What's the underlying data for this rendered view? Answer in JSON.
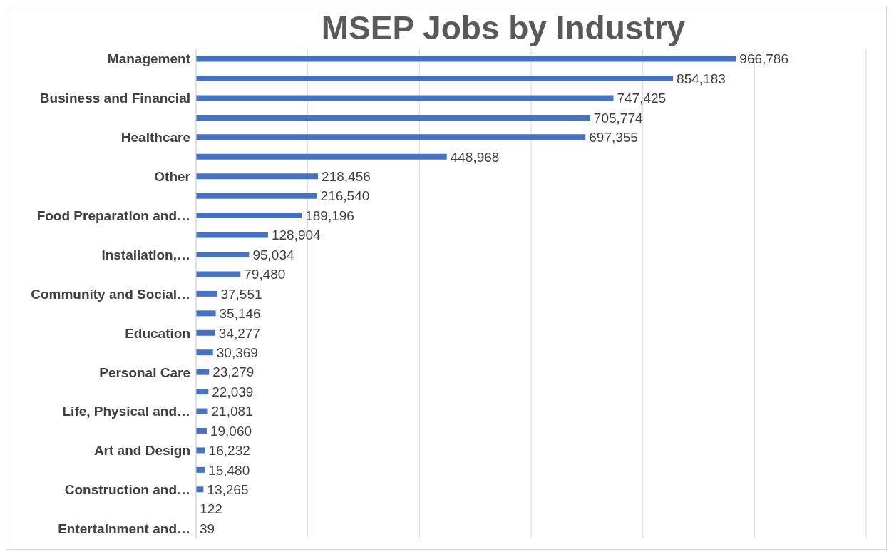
{
  "chart_data": {
    "type": "bar",
    "orientation": "horizontal",
    "title": "MSEP Jobs by Industry",
    "categories": [
      "Management",
      null,
      "Business and Financial",
      null,
      "Healthcare",
      null,
      "Other",
      null,
      "Food Preparation and…",
      null,
      "Installation,…",
      null,
      "Community and Social…",
      null,
      "Education",
      null,
      "Personal Care",
      null,
      "Life, Physical and…",
      null,
      "Art and Design",
      null,
      "Construction and…",
      null,
      "Entertainment and…"
    ],
    "values": [
      966786,
      854183,
      747425,
      705774,
      697355,
      448968,
      218456,
      216540,
      189196,
      128904,
      95034,
      79480,
      37551,
      35146,
      34277,
      30369,
      23279,
      22039,
      21081,
      19060,
      16232,
      15480,
      13265,
      122,
      39
    ],
    "color": "#4472c4",
    "xlim": [
      0,
      1200000
    ],
    "value_labels": [
      "966,786",
      "854,183",
      "747,425",
      "705,774",
      "697,355",
      "448,968",
      "218,456",
      "216,540",
      "189,196",
      "128,904",
      "95,034",
      "79,480",
      "37,551",
      "35,146",
      "34,277",
      "30,369",
      "23,279",
      "22,039",
      "21,081",
      "19,060",
      "16,232",
      "15,480",
      "13,265",
      "122",
      "39"
    ],
    "grid": "x",
    "tick_labels": "y"
  }
}
